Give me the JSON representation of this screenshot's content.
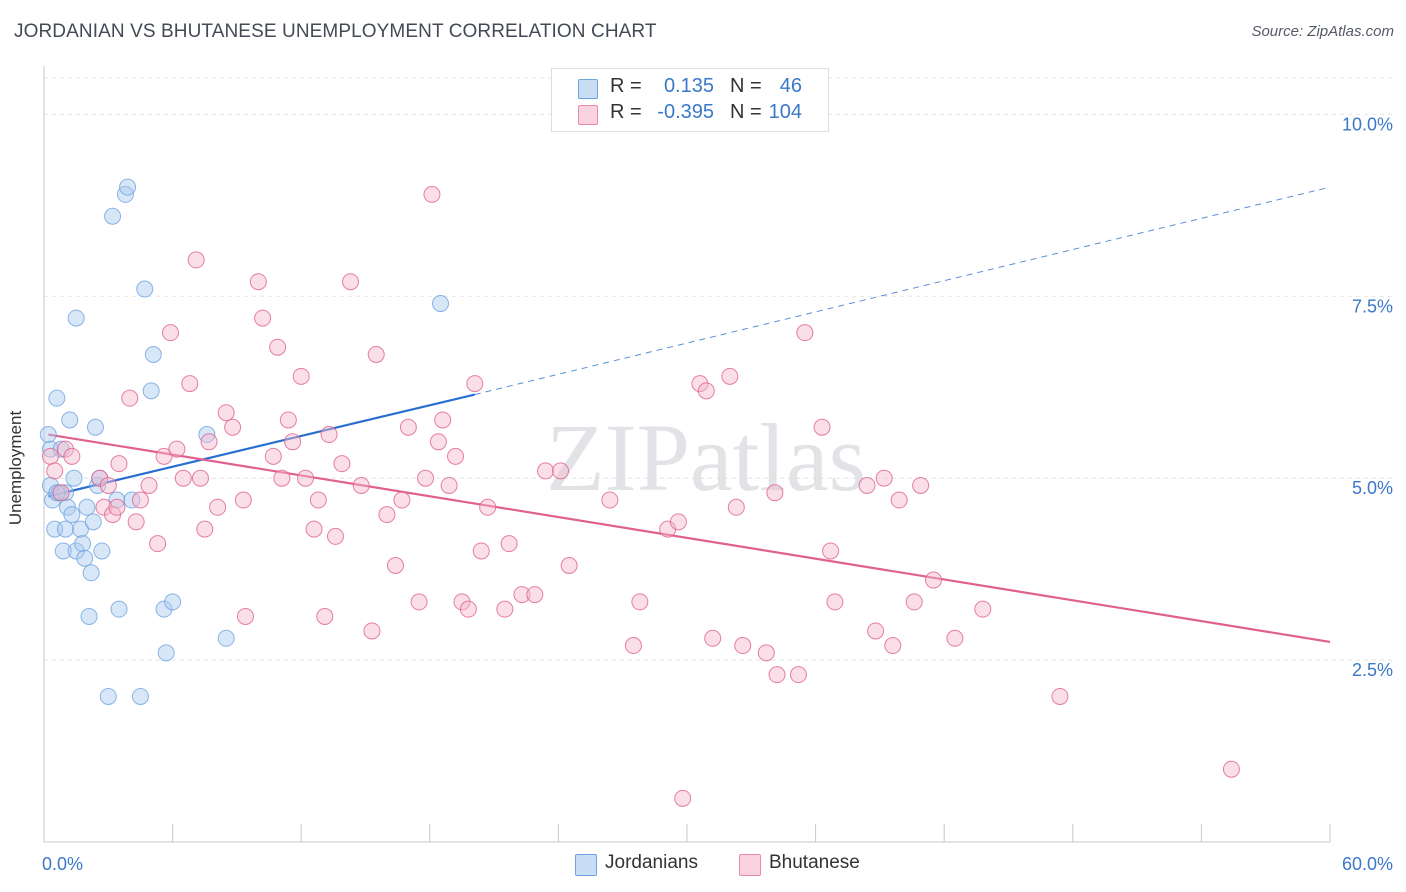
{
  "title": "JORDANIAN VS BHUTANESE UNEMPLOYMENT CORRELATION CHART",
  "source": "Source: ZipAtlas.com",
  "watermark": "ZIPatlas",
  "legend": {
    "rows": [
      {
        "r_label": "R =",
        "r_value": "0.135",
        "n_label": "N =",
        "n_value": "46",
        "color": "#a9c9f0"
      },
      {
        "r_label": "R =",
        "r_value": "-0.395",
        "n_label": "N =",
        "n_value": "104",
        "color": "#f5b8cb"
      }
    ]
  },
  "bottom_legend": [
    {
      "label": "Jordanians",
      "color": "#a9c9f0"
    },
    {
      "label": "Bhutanese",
      "color": "#f5b8cb"
    }
  ],
  "chart_data": {
    "type": "scatter",
    "title": "JORDANIAN VS BHUTANESE UNEMPLOYMENT CORRELATION CHART",
    "xlabel": "",
    "ylabel": "Unemployment",
    "xlim": [
      0,
      60
    ],
    "ylim": [
      0,
      10.5
    ],
    "x_tick_labels": [
      "0.0%",
      "60.0%"
    ],
    "y_ticks": [
      2.5,
      5.0,
      7.5,
      10.0
    ],
    "y_tick_labels": [
      "2.5%",
      "5.0%",
      "7.5%",
      "10.0%"
    ],
    "grid": true,
    "series": [
      {
        "name": "Jordanians",
        "color": "#6fa2e0",
        "fill": "#a9c9f0",
        "trend": {
          "x0": 0.2,
          "y0": 4.75,
          "x1": 20.1,
          "y1": 6.15,
          "x_dash_end": 60,
          "y_dash_end": 9.0
        },
        "points": [
          [
            0.2,
            5.6
          ],
          [
            0.3,
            5.4
          ],
          [
            0.3,
            4.9
          ],
          [
            0.4,
            4.7
          ],
          [
            0.5,
            4.3
          ],
          [
            0.6,
            6.1
          ],
          [
            0.7,
            4.8
          ],
          [
            0.8,
            5.4
          ],
          [
            0.9,
            4.0
          ],
          [
            1.0,
            4.8
          ],
          [
            1.1,
            4.6
          ],
          [
            1.2,
            5.8
          ],
          [
            1.3,
            4.5
          ],
          [
            1.4,
            5.0
          ],
          [
            1.5,
            4.0
          ],
          [
            1.5,
            7.2
          ],
          [
            1.7,
            4.3
          ],
          [
            1.8,
            4.1
          ],
          [
            1.9,
            3.9
          ],
          [
            2.0,
            4.6
          ],
          [
            2.1,
            3.1
          ],
          [
            2.2,
            3.7
          ],
          [
            2.3,
            4.4
          ],
          [
            2.4,
            5.7
          ],
          [
            2.5,
            4.9
          ],
          [
            2.6,
            5.0
          ],
          [
            2.7,
            4.0
          ],
          [
            3.0,
            2.0
          ],
          [
            3.2,
            8.6
          ],
          [
            3.4,
            4.7
          ],
          [
            3.5,
            3.2
          ],
          [
            3.8,
            8.9
          ],
          [
            3.9,
            9.0
          ],
          [
            4.1,
            4.7
          ],
          [
            4.5,
            2.0
          ],
          [
            4.7,
            7.6
          ],
          [
            5.0,
            6.2
          ],
          [
            5.1,
            6.7
          ],
          [
            5.6,
            3.2
          ],
          [
            5.7,
            2.6
          ],
          [
            6.0,
            3.3
          ],
          [
            7.6,
            5.6
          ],
          [
            8.5,
            2.8
          ],
          [
            18.5,
            7.4
          ],
          [
            1.0,
            4.3
          ],
          [
            0.6,
            4.8
          ]
        ]
      },
      {
        "name": "Bhutanese",
        "color": "#e0608f",
        "fill": "#f5b8cb",
        "trend": {
          "x0": 0.2,
          "y0": 5.6,
          "x1": 60,
          "y1": 2.75
        },
        "points": [
          [
            0.3,
            5.3
          ],
          [
            0.5,
            5.1
          ],
          [
            0.8,
            4.8
          ],
          [
            1.0,
            5.4
          ],
          [
            1.3,
            5.3
          ],
          [
            2.6,
            5.0
          ],
          [
            2.8,
            4.6
          ],
          [
            3.0,
            4.9
          ],
          [
            3.2,
            4.5
          ],
          [
            3.4,
            4.6
          ],
          [
            3.5,
            5.2
          ],
          [
            4.0,
            6.1
          ],
          [
            4.3,
            4.4
          ],
          [
            4.5,
            4.7
          ],
          [
            4.9,
            4.9
          ],
          [
            5.3,
            4.1
          ],
          [
            5.6,
            5.3
          ],
          [
            5.9,
            7.0
          ],
          [
            6.2,
            5.4
          ],
          [
            6.5,
            5.0
          ],
          [
            6.8,
            6.3
          ],
          [
            7.1,
            8.0
          ],
          [
            7.3,
            5.0
          ],
          [
            7.5,
            4.3
          ],
          [
            7.7,
            5.5
          ],
          [
            8.1,
            4.6
          ],
          [
            8.5,
            5.9
          ],
          [
            8.8,
            5.7
          ],
          [
            9.3,
            4.7
          ],
          [
            9.4,
            3.1
          ],
          [
            10.0,
            7.7
          ],
          [
            10.2,
            7.2
          ],
          [
            10.7,
            5.3
          ],
          [
            10.9,
            6.8
          ],
          [
            11.4,
            5.8
          ],
          [
            11.6,
            5.5
          ],
          [
            12.0,
            6.4
          ],
          [
            12.2,
            5.0
          ],
          [
            12.6,
            4.3
          ],
          [
            12.8,
            4.7
          ],
          [
            13.1,
            3.1
          ],
          [
            13.3,
            5.6
          ],
          [
            13.6,
            4.2
          ],
          [
            13.9,
            5.2
          ],
          [
            14.3,
            7.7
          ],
          [
            14.8,
            4.9
          ],
          [
            15.3,
            2.9
          ],
          [
            15.5,
            6.7
          ],
          [
            16.0,
            4.5
          ],
          [
            16.4,
            3.8
          ],
          [
            16.7,
            4.7
          ],
          [
            17.0,
            5.7
          ],
          [
            17.5,
            3.3
          ],
          [
            17.8,
            5.0
          ],
          [
            18.1,
            8.9
          ],
          [
            18.4,
            5.5
          ],
          [
            18.6,
            5.8
          ],
          [
            18.9,
            4.9
          ],
          [
            19.2,
            5.3
          ],
          [
            19.5,
            3.3
          ],
          [
            19.8,
            3.2
          ],
          [
            20.1,
            6.3
          ],
          [
            20.4,
            4.0
          ],
          [
            20.7,
            4.6
          ],
          [
            21.5,
            3.2
          ],
          [
            21.7,
            4.1
          ],
          [
            22.3,
            3.4
          ],
          [
            22.9,
            3.4
          ],
          [
            23.4,
            5.1
          ],
          [
            24.1,
            5.1
          ],
          [
            24.5,
            3.8
          ],
          [
            26.4,
            4.7
          ],
          [
            27.5,
            2.7
          ],
          [
            27.8,
            3.3
          ],
          [
            29.1,
            4.3
          ],
          [
            29.8,
            0.6
          ],
          [
            30.6,
            6.3
          ],
          [
            30.9,
            6.2
          ],
          [
            31.2,
            2.8
          ],
          [
            32.0,
            6.4
          ],
          [
            32.3,
            4.6
          ],
          [
            32.6,
            2.7
          ],
          [
            33.7,
            2.6
          ],
          [
            34.2,
            2.3
          ],
          [
            35.2,
            2.3
          ],
          [
            35.5,
            7.0
          ],
          [
            36.3,
            5.7
          ],
          [
            36.7,
            4.0
          ],
          [
            36.9,
            3.3
          ],
          [
            38.4,
            4.9
          ],
          [
            38.8,
            2.9
          ],
          [
            39.2,
            5.0
          ],
          [
            39.6,
            2.7
          ],
          [
            39.9,
            4.7
          ],
          [
            40.6,
            3.3
          ],
          [
            40.9,
            4.9
          ],
          [
            41.5,
            3.6
          ],
          [
            42.5,
            2.8
          ],
          [
            43.8,
            3.2
          ],
          [
            47.4,
            2.0
          ],
          [
            55.4,
            1.0
          ],
          [
            34.1,
            4.8
          ],
          [
            29.6,
            4.4
          ],
          [
            11.1,
            5.0
          ]
        ]
      }
    ]
  }
}
